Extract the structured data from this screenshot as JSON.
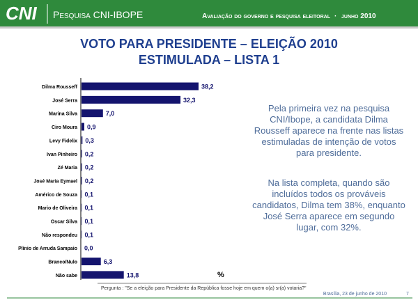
{
  "header": {
    "logo": "CNI",
    "left": "Pesquisa CNI-IBOPE",
    "right": "Avaliação do governo e pesquisa eleitoral",
    "date": "junho 2010"
  },
  "chart_data": {
    "type": "hbar",
    "title": "VOTO PARA PRESIDENTE – ELEIÇÃO 2010",
    "subtitle": "ESTIMULADA – LISTA 1",
    "categories": [
      "Dilma Rousseff",
      "José Serra",
      "Marina Silva",
      "Ciro Moura",
      "Levy Fidelix",
      "Ivan Pinheiro",
      "Zé Maria",
      "José Maria Eymael",
      "Américo de Souza",
      "Mario de Oliveira",
      "Oscar Silva",
      "Não respondeu",
      "Plínio de Arruda Sampaio",
      "Branco/Nulo",
      "Não sabe"
    ],
    "values": [
      38.2,
      32.3,
      7.0,
      0.9,
      0.3,
      0.2,
      0.2,
      0.2,
      0.1,
      0.1,
      0.1,
      0.1,
      0.0,
      6.3,
      13.8
    ],
    "value_labels": [
      "38,2",
      "32,3",
      "7,0",
      "0,9",
      "0,3",
      "0,2",
      "0,2",
      "0,2",
      "0,1",
      "0,1",
      "0,1",
      "0,1",
      "0,0",
      "6,3",
      "13,8"
    ],
    "color": "#14146e",
    "unit_label": "%"
  },
  "notes": [
    "Pela primeira vez na pesquisa CNI/Ibope, a candidata Dilma Rousseff aparece na frente nas listas estimuladas de intenção de votos para presidente.",
    "Na lista completa, quando são incluídos todos os prováveis candidatos, Dilma tem 38%, enquanto José Serra aparece em segundo lugar, com 32%."
  ],
  "footer": {
    "question": "Pergunta : \"Se a eleição para Presidente da República fosse hoje em quem o(a) sr(a) votaria?\"",
    "place_date": "Brasília, 23 de junho de 2010",
    "page": "7"
  }
}
